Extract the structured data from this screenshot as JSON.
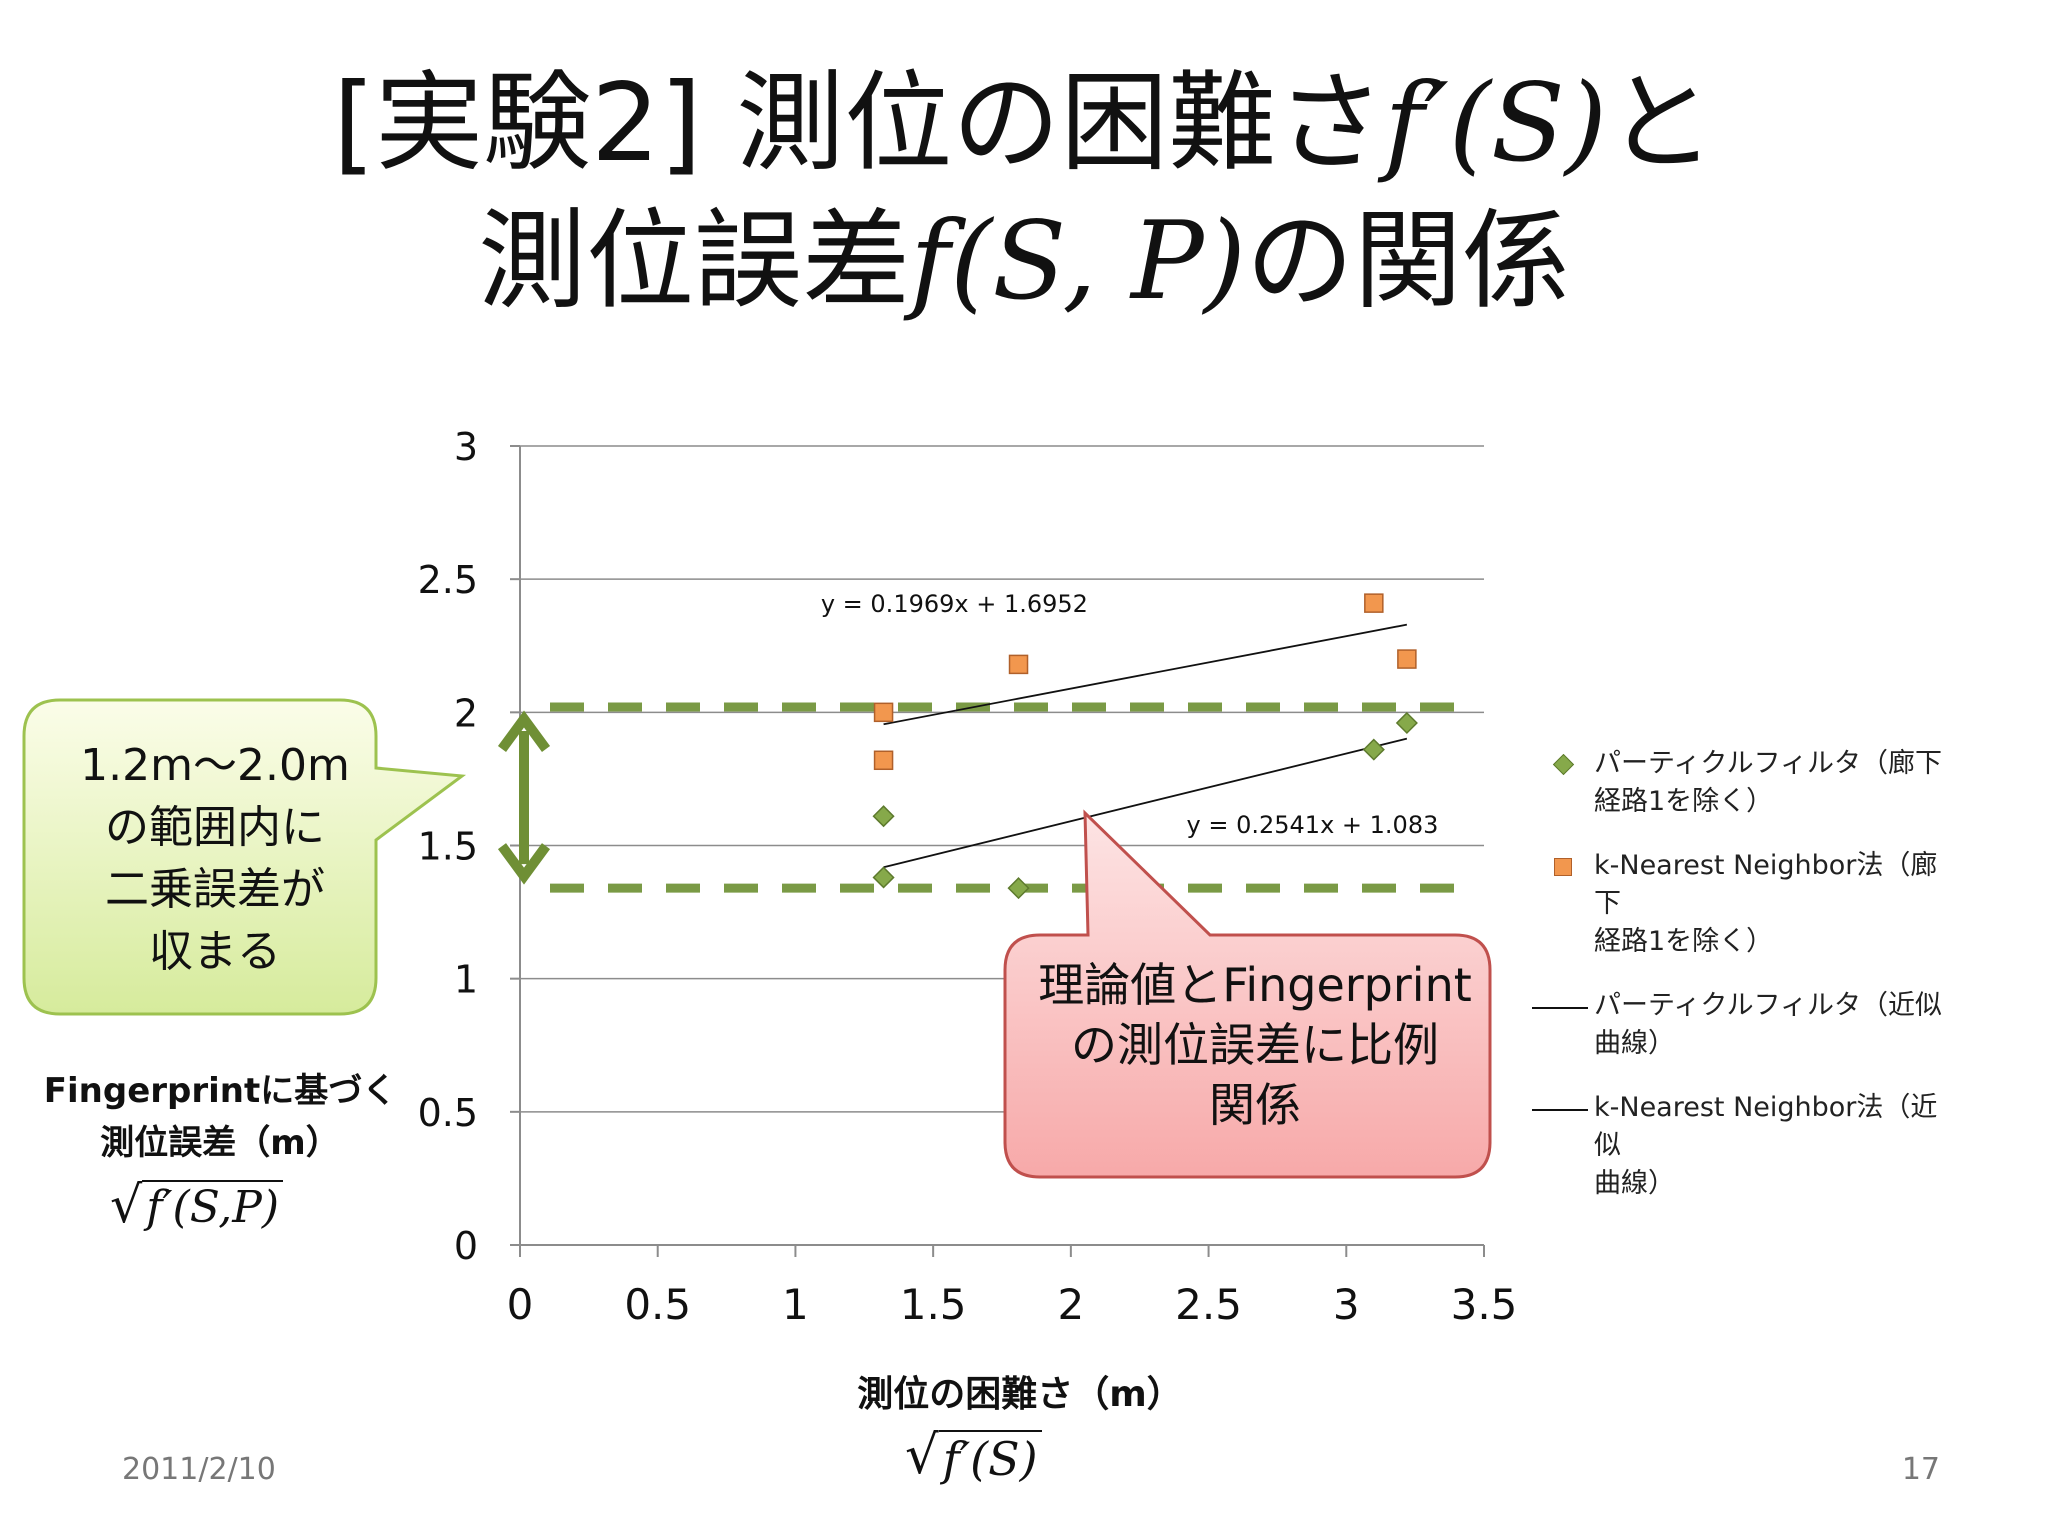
{
  "slide": {
    "title_line1_prefix": "[実験2] 測位の困難さ",
    "title_line1_math": "f′(S)",
    "title_line1_suffix": "と",
    "title_line2_prefix": "測位誤差",
    "title_line2_math": "f(S, P)",
    "title_line2_suffix": "の関係",
    "date": "2011/2/10",
    "page_number": "17"
  },
  "callouts": {
    "green_lines": [
      "1.2m～2.0m",
      "の範囲内に",
      "二乗誤差が",
      "収まる"
    ],
    "red_lines": [
      "理論値とFingerprint",
      "の測位誤差に比例",
      "関係"
    ]
  },
  "axes": {
    "ylabel_lines": [
      "Fingerprintに基づく",
      "測位誤差（m）"
    ],
    "ylabel_math": "f′(S,P)",
    "xlabel": "測位の困難さ（m）",
    "xlabel_math": "f′(S)"
  },
  "legend": [
    {
      "marker": "diamond",
      "line1": "パーティクルフィルタ（廊下",
      "line2": "経路1を除く）"
    },
    {
      "marker": "square",
      "line1": "k-Nearest Neighbor法（廊下",
      "line2": "経路1を除く）"
    },
    {
      "marker": "line",
      "line1": "パーティクルフィルタ（近似",
      "line2": "曲線）"
    },
    {
      "marker": "line",
      "line1": "k-Nearest Neighbor法（近似",
      "line2": "曲線）"
    }
  ],
  "chart_data": {
    "type": "scatter",
    "xlim": [
      0,
      3.5
    ],
    "ylim": [
      0,
      3
    ],
    "x_ticks": [
      "0",
      "0.5",
      "1",
      "1.5",
      "2",
      "2.5",
      "3",
      "3.5"
    ],
    "y_ticks": [
      "0",
      "0.5",
      "1",
      "1.5",
      "2",
      "2.5",
      "3"
    ],
    "grid": "horizontal",
    "legend_position": "right",
    "series": [
      {
        "name": "パーティクルフィルタ（廊下経路1を除く）",
        "marker": "diamond",
        "color": "#86a94a",
        "points": [
          [
            1.32,
            1.61
          ],
          [
            1.32,
            1.38
          ],
          [
            1.81,
            1.34
          ],
          [
            3.1,
            1.86
          ],
          [
            3.22,
            1.96
          ]
        ]
      },
      {
        "name": "k-Nearest Neighbor法（廊下経路1を除く）",
        "marker": "square",
        "color": "#f2974e",
        "points": [
          [
            1.32,
            2.0
          ],
          [
            1.32,
            1.82
          ],
          [
            1.81,
            2.18
          ],
          [
            3.1,
            2.41
          ],
          [
            3.22,
            2.2
          ]
        ]
      }
    ],
    "trendlines": [
      {
        "name": "k-Nearest Neighbor法（近似曲線）",
        "slope": 0.1969,
        "intercept": 1.6952,
        "x_range": [
          1.32,
          3.22
        ],
        "label": "y = 0.1969x + 1.6952"
      },
      {
        "name": "パーティクルフィルタ（近似曲線）",
        "slope": 0.2541,
        "intercept": 1.083,
        "x_range": [
          1.32,
          3.22
        ],
        "label": "y = 0.2541x + 1.083"
      }
    ],
    "reference_lines": [
      {
        "y": 2.02,
        "style": "dashed",
        "color": "#7a9a45"
      },
      {
        "y": 1.34,
        "style": "dashed",
        "color": "#7a9a45"
      }
    ],
    "range_arrow": {
      "x": 0.0,
      "from": 1.34,
      "to": 2.02,
      "color": "#6f8f35"
    }
  }
}
